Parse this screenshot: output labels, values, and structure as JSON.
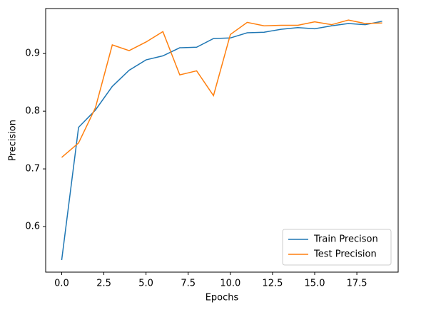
{
  "chart_data": {
    "type": "line",
    "xlabel": "Epochs",
    "ylabel": "Precision",
    "x": [
      0,
      1,
      2,
      3,
      4,
      5,
      6,
      7,
      8,
      9,
      10,
      11,
      12,
      13,
      14,
      15,
      16,
      17,
      18,
      19
    ],
    "series": [
      {
        "name": "Train Precison",
        "color": "#1f77b4",
        "values": [
          0.542,
          0.772,
          0.802,
          0.843,
          0.871,
          0.889,
          0.896,
          0.91,
          0.911,
          0.926,
          0.927,
          0.936,
          0.937,
          0.942,
          0.945,
          0.943,
          0.948,
          0.952,
          0.95,
          0.956
        ]
      },
      {
        "name": "Test Precision",
        "color": "#ff7f0e",
        "values": [
          0.72,
          0.745,
          0.806,
          0.915,
          0.905,
          0.92,
          0.938,
          0.863,
          0.87,
          0.827,
          0.933,
          0.954,
          0.948,
          0.949,
          0.949,
          0.955,
          0.95,
          0.958,
          0.952,
          0.953
        ]
      }
    ],
    "xlim": [
      -0.95,
      19.95
    ],
    "xticks": [
      {
        "value": 0,
        "label": "0.0"
      },
      {
        "value": 2.5,
        "label": "2.5"
      },
      {
        "value": 5,
        "label": "5.0"
      },
      {
        "value": 7.5,
        "label": "7.5"
      },
      {
        "value": 10,
        "label": "10.0"
      },
      {
        "value": 12.5,
        "label": "12.5"
      },
      {
        "value": 15,
        "label": "15.0"
      },
      {
        "value": 17.5,
        "label": "17.5"
      }
    ],
    "ylim": [
      0.521,
      0.978
    ],
    "yticks": [
      0.6,
      0.7,
      0.8,
      0.9
    ],
    "legend": "lower right",
    "grid": false
  }
}
